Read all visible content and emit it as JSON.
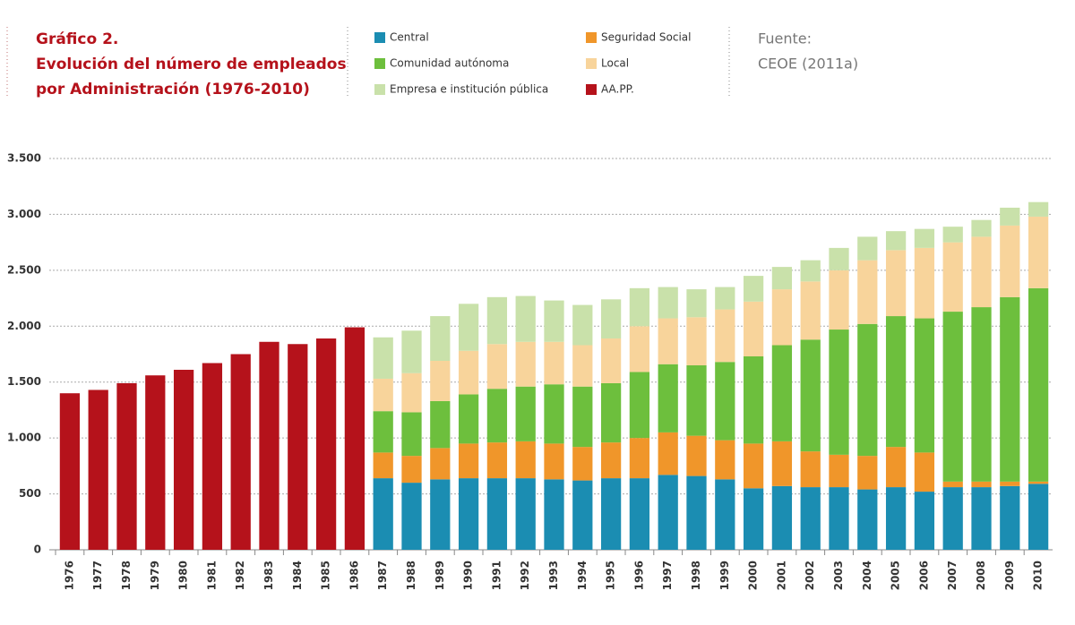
{
  "chart_data": {
    "type": "stacked_bar",
    "title_lines": [
      "Gráfico 2.",
      "Evolución del número de empleados",
      "por Administración (1976-2010)"
    ],
    "source": [
      "Fuente:",
      "CEOE (2011a)"
    ],
    "categories": [
      "1976",
      "1977",
      "1978",
      "1979",
      "1980",
      "1981",
      "1982",
      "1983",
      "1984",
      "1985",
      "1986",
      "1987",
      "1988",
      "1989",
      "1990",
      "1991",
      "1992",
      "1993",
      "1994",
      "1995",
      "1996",
      "1997",
      "1998",
      "1999",
      "2000",
      "2001",
      "2002",
      "2003",
      "2004",
      "2005",
      "2006",
      "2007",
      "2008",
      "2009",
      "2010"
    ],
    "series": [
      {
        "name": "Central",
        "color": "#1b8db2",
        "values": [
          null,
          null,
          null,
          null,
          null,
          null,
          null,
          null,
          null,
          null,
          null,
          640,
          600,
          630,
          640,
          640,
          640,
          630,
          620,
          640,
          640,
          670,
          660,
          630,
          550,
          570,
          560,
          560,
          540,
          560,
          520,
          560,
          560,
          570,
          590
        ]
      },
      {
        "name": "Seguridad Social",
        "color": "#f0962a",
        "values": [
          null,
          null,
          null,
          null,
          null,
          null,
          null,
          null,
          null,
          null,
          null,
          230,
          240,
          280,
          310,
          320,
          330,
          320,
          300,
          320,
          360,
          380,
          360,
          350,
          400,
          400,
          320,
          290,
          300,
          360,
          350,
          50,
          50,
          40,
          20
        ]
      },
      {
        "name": "Comunidad autónoma",
        "color": "#6dbf3d",
        "values": [
          null,
          null,
          null,
          null,
          null,
          null,
          null,
          null,
          null,
          null,
          null,
          370,
          390,
          420,
          440,
          480,
          490,
          530,
          540,
          530,
          590,
          610,
          630,
          700,
          780,
          860,
          1000,
          1120,
          1180,
          1170,
          1200,
          1520,
          1560,
          1650,
          1730
        ]
      },
      {
        "name": "Local",
        "color": "#f8d49b",
        "values": [
          null,
          null,
          null,
          null,
          null,
          null,
          null,
          null,
          null,
          null,
          null,
          290,
          350,
          360,
          390,
          400,
          400,
          380,
          370,
          400,
          410,
          410,
          430,
          470,
          490,
          500,
          520,
          530,
          570,
          590,
          630,
          620,
          630,
          640,
          640
        ]
      },
      {
        "name": "Empresa e institución pública",
        "color": "#c9e1aa",
        "values": [
          null,
          null,
          null,
          null,
          null,
          null,
          null,
          null,
          null,
          null,
          null,
          370,
          380,
          400,
          420,
          420,
          410,
          370,
          360,
          350,
          340,
          280,
          250,
          200,
          230,
          200,
          190,
          200,
          210,
          170,
          170,
          140,
          150,
          160,
          130
        ]
      },
      {
        "name": "AA.PP.",
        "color": "#b5121b",
        "values": [
          1400,
          1430,
          1490,
          1560,
          1610,
          1670,
          1750,
          1860,
          1840,
          1890,
          1990,
          null,
          null,
          null,
          null,
          null,
          null,
          null,
          null,
          null,
          null,
          null,
          null,
          null,
          null,
          null,
          null,
          null,
          null,
          null,
          null,
          null,
          null,
          null,
          null
        ]
      }
    ],
    "ylim": [
      0,
      3500
    ],
    "yticks": [
      0,
      500,
      {
        "value": 1000,
        "label": "1.000"
      },
      {
        "value": 1500,
        "label": "1.500"
      },
      {
        "value": 2000,
        "label": "2.000"
      },
      {
        "value": 2500,
        "label": "2.500"
      },
      {
        "value": 3000,
        "label": "3.000"
      },
      {
        "value": 3500,
        "label": "3.500"
      }
    ],
    "grid": true
  }
}
